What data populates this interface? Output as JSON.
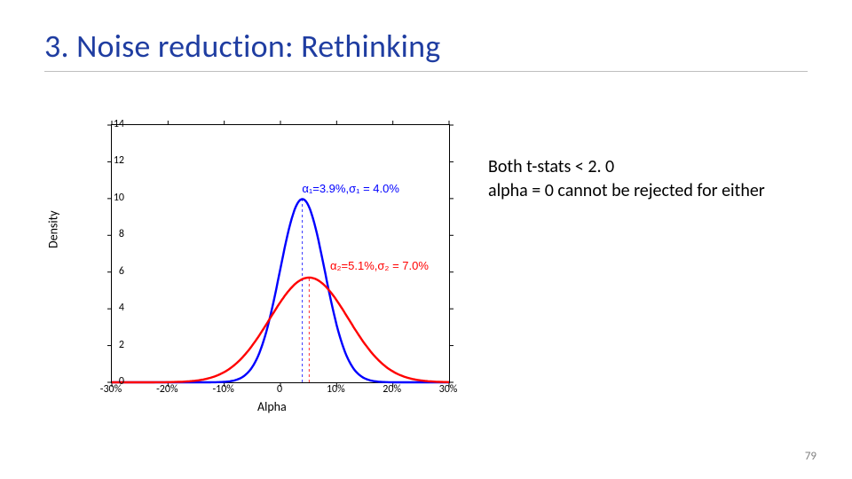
{
  "title": "3. Noise reduction: Rethinking",
  "page_number": "79",
  "side_text_line1": "Both t-stats < 2. 0",
  "side_text_line2": "alpha = 0 cannot be rejected for either",
  "chart": {
    "type": "line",
    "xlabel": "Alpha",
    "ylabel": "Density",
    "xlim": [
      -30,
      30
    ],
    "ylim": [
      0,
      14
    ],
    "xtick_step": 10,
    "ytick_step": 2,
    "xtick_labels": [
      "-30%",
      "-20%",
      "-10%",
      "0",
      "10%",
      "20%",
      "30%"
    ],
    "background_color": "#ffffff",
    "axis_color": "#000000",
    "tick_fontsize": 12,
    "label_fontsize": 14,
    "series": [
      {
        "name": "curve1",
        "color": "#0000ff",
        "line_width": 2.4,
        "mu": 3.9,
        "sigma": 4.0,
        "dash_x": 3.9,
        "annot_text": "α₁=3.9%,σ₁ = 4.0%",
        "annot_color": "#0000ff",
        "annot_xy": [
          4.0,
          10.2
        ]
      },
      {
        "name": "curve2",
        "color": "#ff0000",
        "line_width": 2.4,
        "mu": 5.1,
        "sigma": 7.0,
        "dash_x": 5.1,
        "annot_text": "α₂=5.1%,σ₂ = 7.0%",
        "annot_color": "#ff0000",
        "annot_xy": [
          9.0,
          6.0
        ]
      }
    ]
  }
}
